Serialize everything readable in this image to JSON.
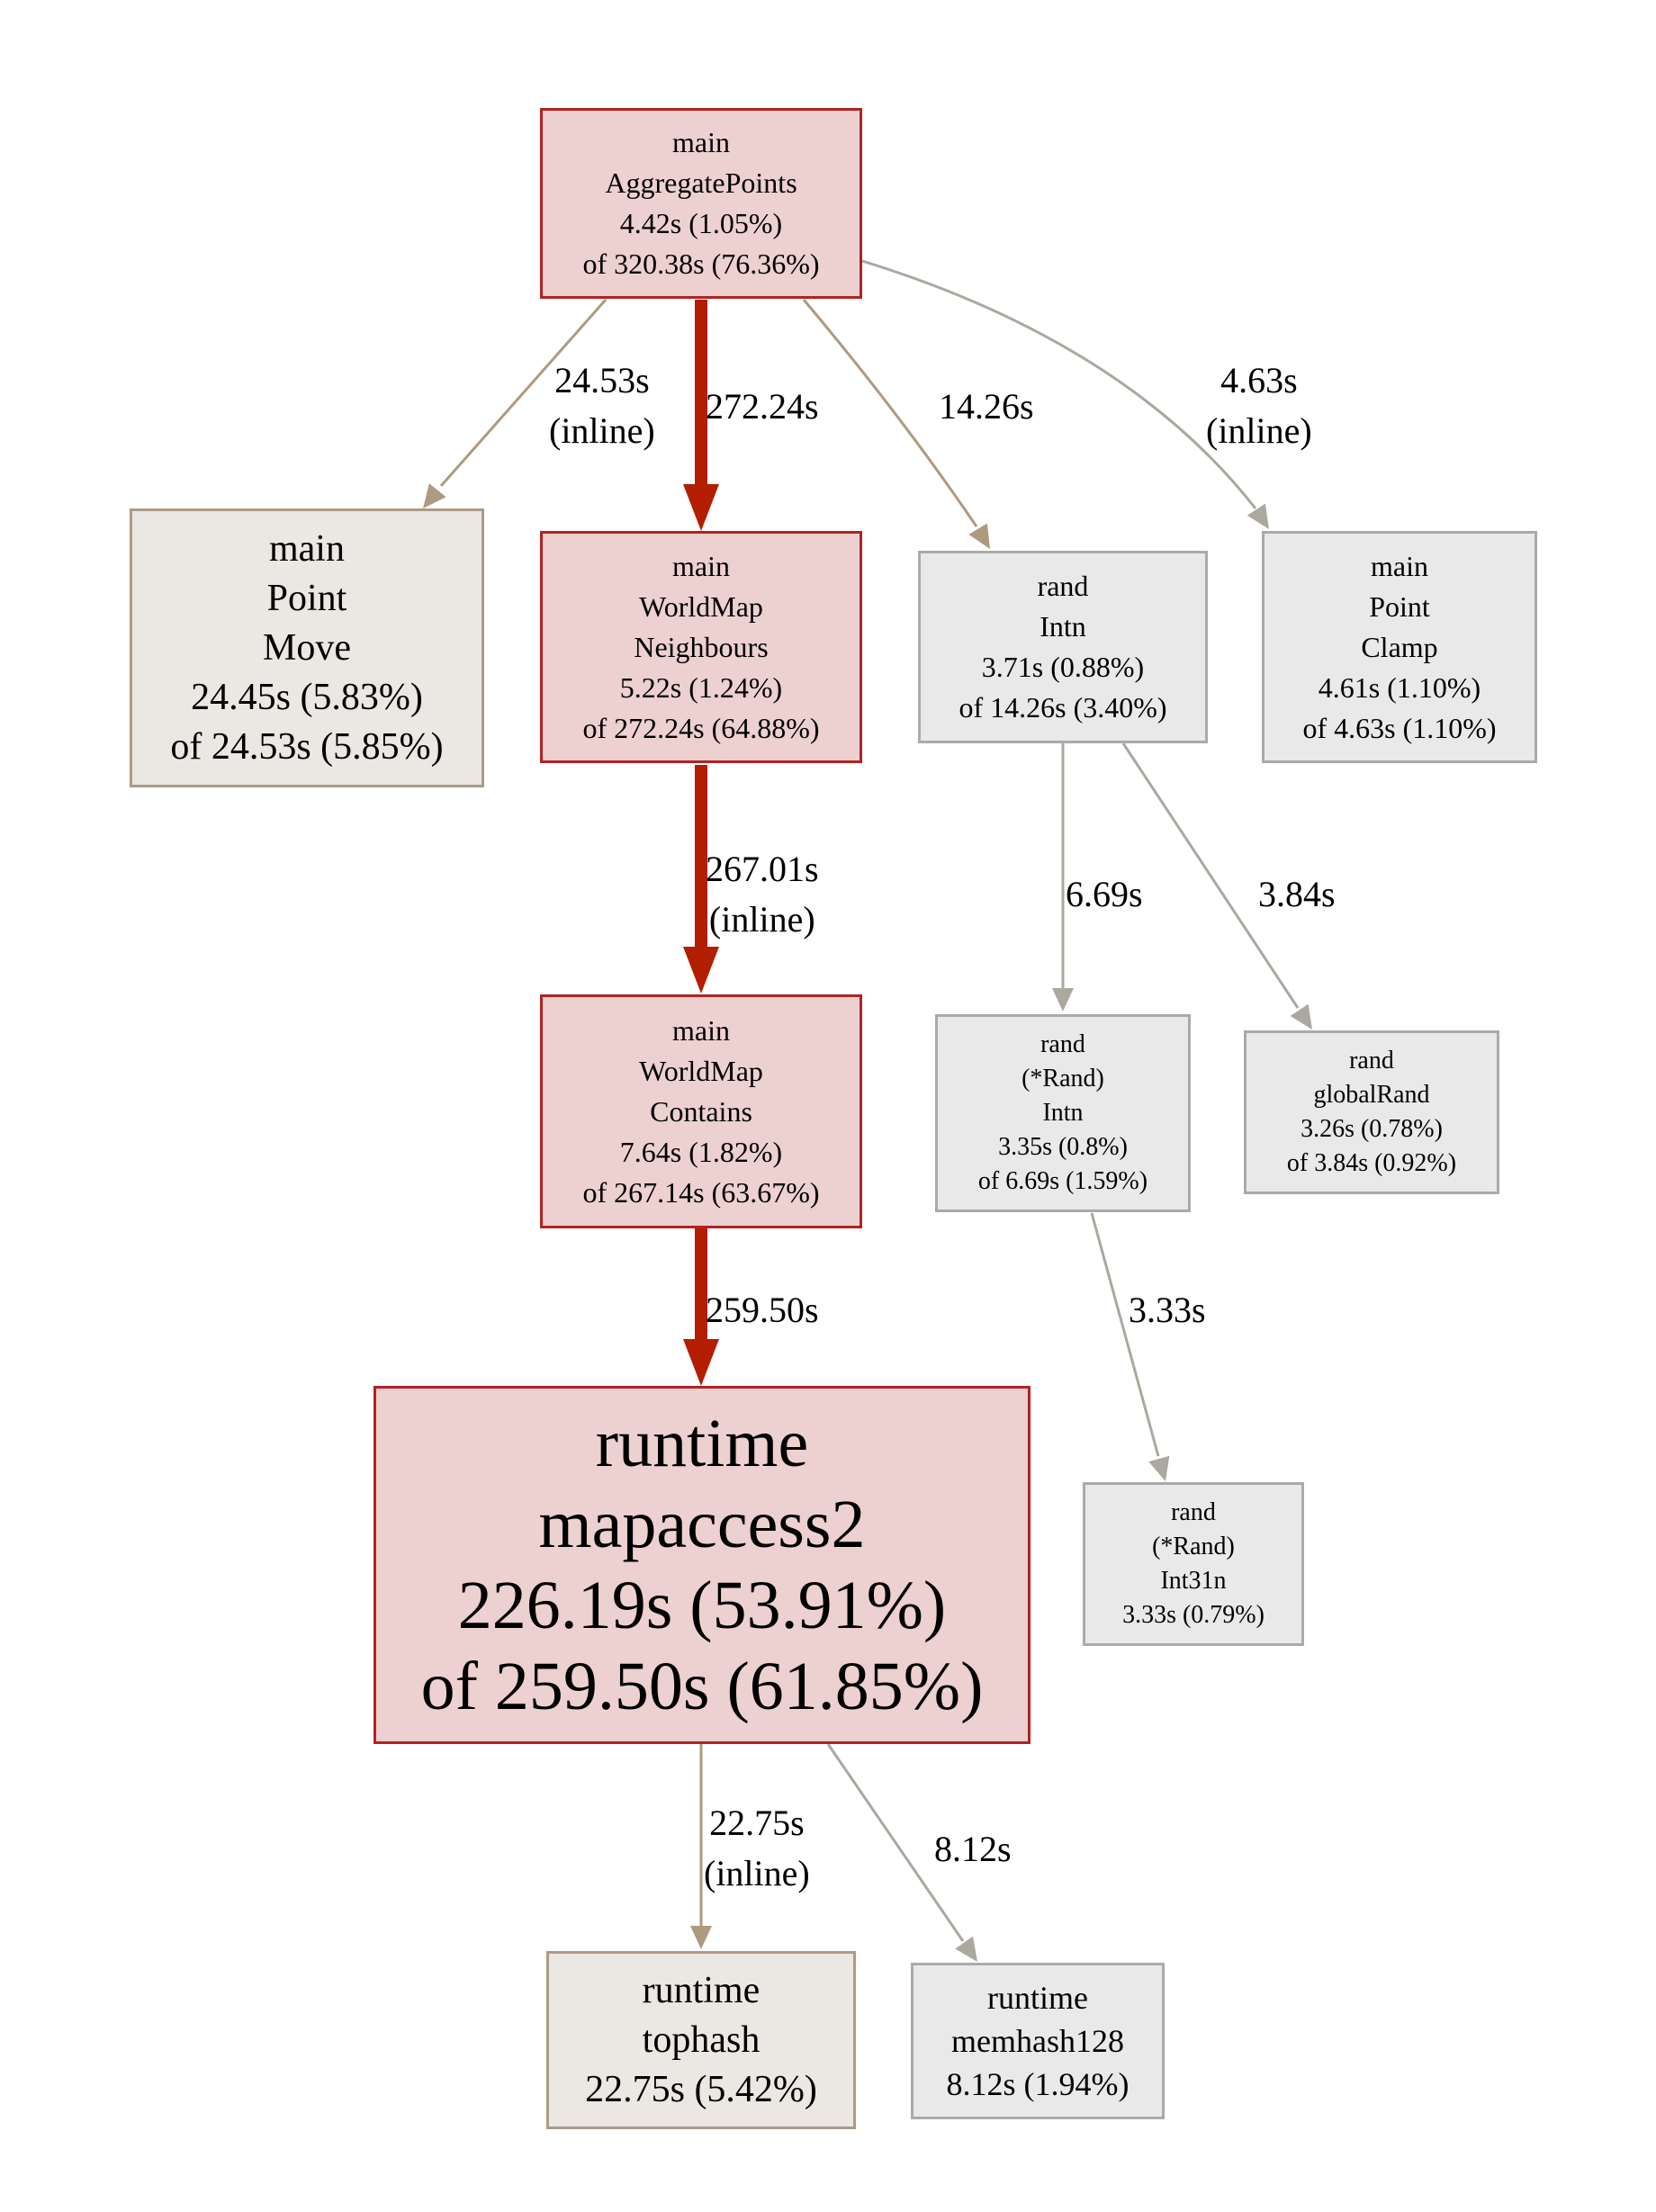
{
  "colors": {
    "hot_fill": "#edd0d0",
    "hot_border": "#b22222",
    "hot_edge": "#b31d00",
    "tan_fill": "#ebe7e3",
    "tan_border": "#ae9a86",
    "tan_edge": "#ad9a80",
    "gray_fill": "#e9e9e9",
    "gray_border": "#aaaaaa",
    "gray_edge": "#aaa89f"
  },
  "nodes": {
    "aggregate_points": {
      "lines": [
        "main",
        "AggregatePoints",
        "4.42s (1.05%)",
        "of 320.38s (76.36%)"
      ]
    },
    "point_move": {
      "lines": [
        "main",
        "Point",
        "Move",
        "24.45s (5.83%)",
        "of 24.53s (5.85%)"
      ]
    },
    "worldmap_neighbours": {
      "lines": [
        "main",
        "WorldMap",
        "Neighbours",
        "5.22s (1.24%)",
        "of 272.24s (64.88%)"
      ]
    },
    "rand_intn": {
      "lines": [
        "rand",
        "Intn",
        "3.71s (0.88%)",
        "of 14.26s (3.40%)"
      ]
    },
    "point_clamp": {
      "lines": [
        "main",
        "Point",
        "Clamp",
        "4.61s (1.10%)",
        "of 4.63s (1.10%)"
      ]
    },
    "worldmap_contains": {
      "lines": [
        "main",
        "WorldMap",
        "Contains",
        "7.64s (1.82%)",
        "of 267.14s (63.67%)"
      ]
    },
    "rand_rand_intn": {
      "lines": [
        "rand",
        "(*Rand)",
        "Intn",
        "3.35s (0.8%)",
        "of 6.69s (1.59%)"
      ]
    },
    "rand_global_rand": {
      "lines": [
        "rand",
        "globalRand",
        "3.26s (0.78%)",
        "of 3.84s (0.92%)"
      ]
    },
    "runtime_mapaccess2": {
      "lines": [
        "runtime",
        "mapaccess2",
        "226.19s (53.91%)",
        "of 259.50s (61.85%)"
      ]
    },
    "rand_int31n": {
      "lines": [
        "rand",
        "(*Rand)",
        "Int31n",
        "3.33s (0.79%)"
      ]
    },
    "runtime_tophash": {
      "lines": [
        "runtime",
        "tophash",
        "22.75s (5.42%)"
      ]
    },
    "runtime_memhash128": {
      "lines": [
        "runtime",
        "memhash128",
        "8.12s (1.94%)"
      ]
    }
  },
  "edges": {
    "agg_to_move": {
      "lines": [
        "24.53s",
        "(inline)"
      ]
    },
    "agg_to_neighbours": {
      "lines": [
        "272.24s"
      ]
    },
    "agg_to_intn": {
      "lines": [
        "14.26s"
      ]
    },
    "agg_to_clamp": {
      "lines": [
        "4.63s",
        "(inline)"
      ]
    },
    "neighbours_to_contains": {
      "lines": [
        "267.01s",
        "(inline)"
      ]
    },
    "intn_to_rand_intn": {
      "lines": [
        "6.69s"
      ]
    },
    "intn_to_global_rand": {
      "lines": [
        "3.84s"
      ]
    },
    "contains_to_mapaccess": {
      "lines": [
        "259.50s"
      ]
    },
    "rand_intn_to_int31n": {
      "lines": [
        "3.33s"
      ]
    },
    "mapaccess_to_tophash": {
      "lines": [
        "22.75s",
        "(inline)"
      ]
    },
    "mapaccess_to_memhash": {
      "lines": [
        "8.12s"
      ]
    }
  }
}
